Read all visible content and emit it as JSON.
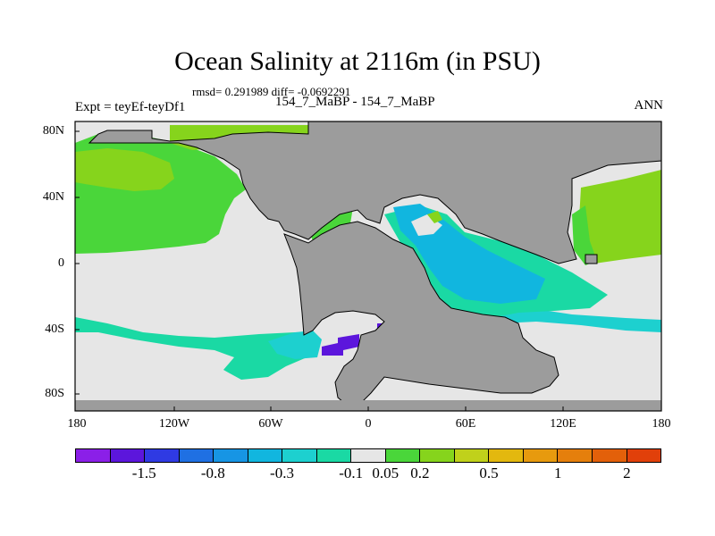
{
  "title": "Ocean Salinity at 2116m (in PSU)",
  "stats": "rmsd= 0.291989 diff= -0.0692291",
  "expt_label": "Expt = teyEf-teyDf1",
  "cases_label": "154_7_MaBP - 154_7_MaBP",
  "season": "ANN",
  "lat_ticks": [
    "80N",
    "40N",
    "0",
    "40S",
    "80S"
  ],
  "lon_ticks": [
    "180",
    "120W",
    "60W",
    "0",
    "60E",
    "120E",
    "180"
  ],
  "colorbar": {
    "colors": [
      "#8b1fe8",
      "#5c16dc",
      "#2f3ae3",
      "#1f70e3",
      "#1795e4",
      "#11b6df",
      "#1dd0cf",
      "#1ad9a4",
      "#e6e6e6",
      "#4ad63a",
      "#86d41c",
      "#c0d11b",
      "#e3b80f",
      "#e79a0e",
      "#e57f0c",
      "#e3600a",
      "#e1400a"
    ],
    "labels": [
      "-1.5",
      "-0.8",
      "-0.3",
      "-0.1",
      "0.05",
      "0.2",
      "0.5",
      "1",
      "2"
    ]
  },
  "palette": {
    "land": "#9c9c9c",
    "near_zero": "#e6e6e6",
    "pos_small": "#4ad63a",
    "pos_mid": "#86d41c",
    "neg_small": "#1ad9a4",
    "neg_mid": "#1dd0cf",
    "neg_large": "#11b6df",
    "neg_max": "#5c16dc"
  }
}
